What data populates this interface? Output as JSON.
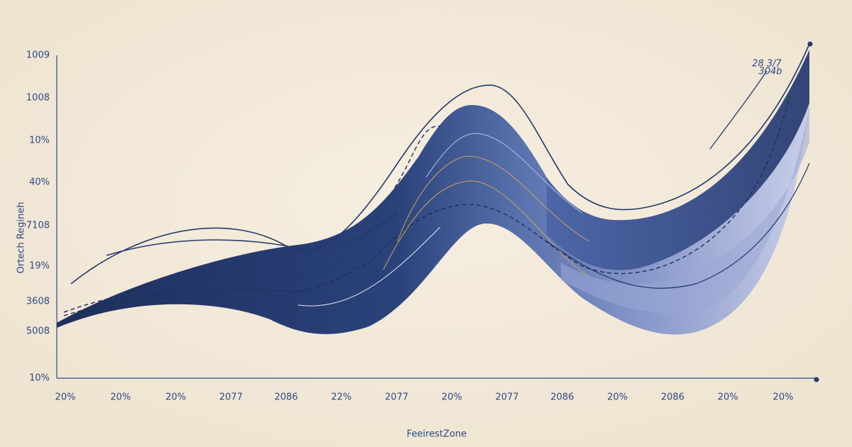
{
  "axis": {
    "y_label": "Ortech Regineh",
    "x_label": "FeeirestZone",
    "y_ticks": [
      "1009",
      "1008",
      "10%",
      "40%",
      "7108",
      "19%",
      "3608",
      "5008",
      "10%"
    ],
    "x_ticks": [
      "20%",
      "20%",
      "20%",
      "2077",
      "2086",
      "22%",
      "2077",
      "20%",
      "2077",
      "2086",
      "20%",
      "2086",
      "20%",
      "20%"
    ]
  },
  "annotation": [
    "28 3/7",
    "304b"
  ]
}
